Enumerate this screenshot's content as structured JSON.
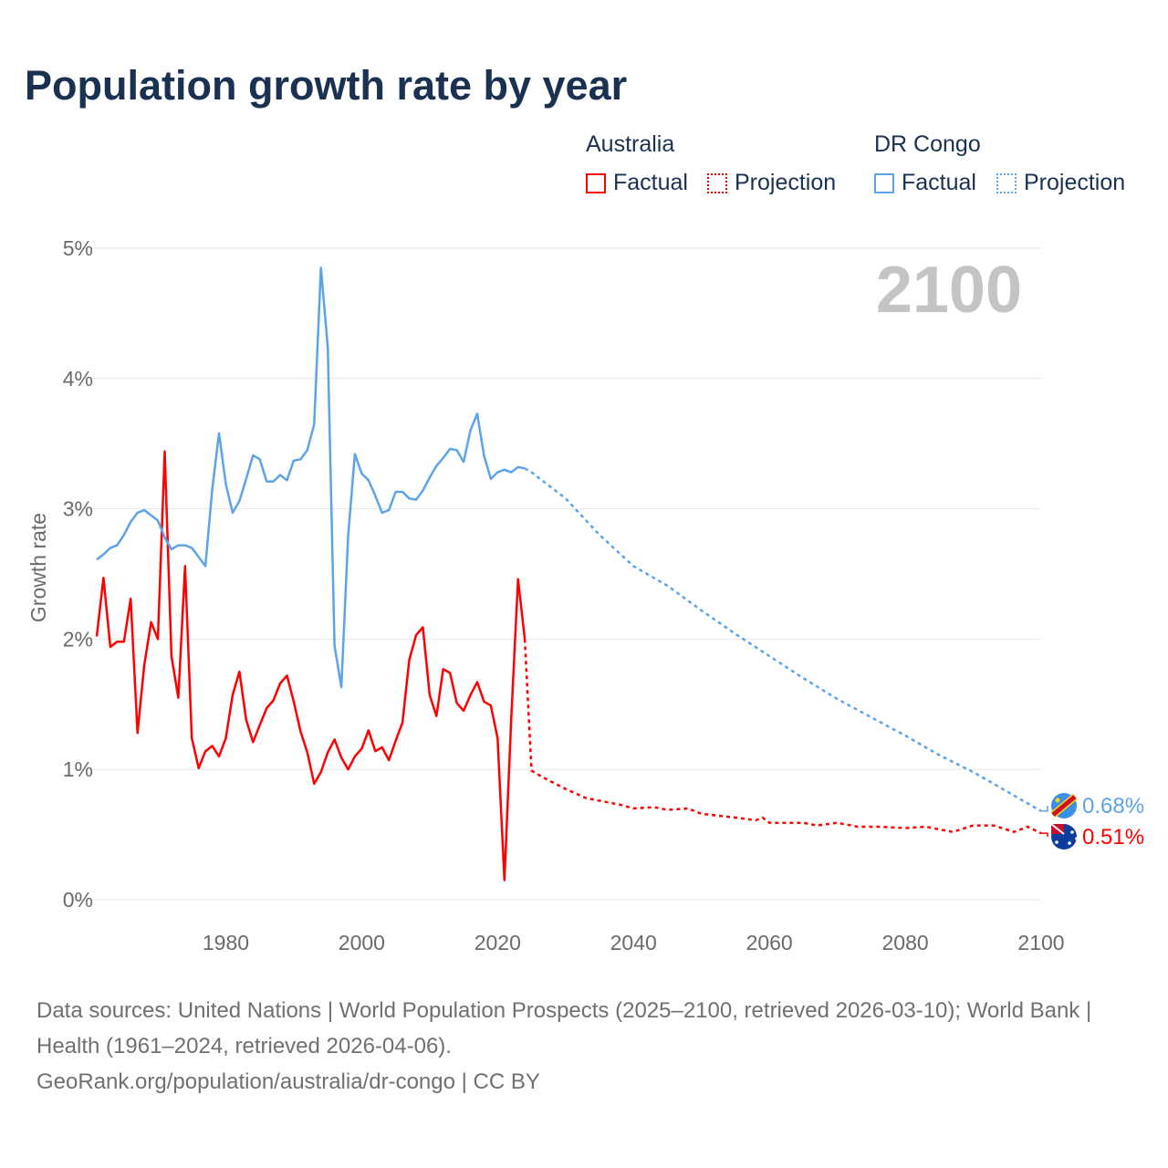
{
  "title": "Population growth rate by year",
  "legend": {
    "groups": [
      {
        "name": "Australia",
        "color": "#ff0000",
        "factual": "Factual",
        "projection": "Projection"
      },
      {
        "name": "DR Congo",
        "color": "#5ba4ea",
        "factual": "Factual",
        "projection": "Projection"
      }
    ]
  },
  "footer": {
    "line1": "Data sources: United Nations | World Population Prospects (2025–2100, retrieved 2026-03-10); World Bank | Health (1961–2024, retrieved 2026-04-06).",
    "line2": "GeoRank.org/population/australia/dr-congo | CC BY"
  },
  "chart_data": {
    "type": "line",
    "title": "Population growth rate by year",
    "xlabel": "",
    "ylabel": "Growth rate",
    "year_overlay": "2100",
    "xlim": [
      1961,
      2100
    ],
    "ylim": [
      0,
      5
    ],
    "xticks": [
      1980,
      2000,
      2020,
      2040,
      2060,
      2080,
      2100
    ],
    "yticks": [
      {
        "v": 0,
        "label": "0%"
      },
      {
        "v": 1,
        "label": "1%"
      },
      {
        "v": 2,
        "label": "2%"
      },
      {
        "v": 3,
        "label": "3%"
      },
      {
        "v": 4,
        "label": "4%"
      },
      {
        "v": 5,
        "label": "5%"
      }
    ],
    "grid": true,
    "legend_position": "top-right",
    "series": [
      {
        "name": "Australia",
        "color": "#ff0000",
        "end_label": "0.51%",
        "factual": {
          "x": [
            1961,
            1962,
            1963,
            1964,
            1965,
            1966,
            1967,
            1968,
            1969,
            1970,
            1971,
            1972,
            1973,
            1974,
            1975,
            1976,
            1977,
            1978,
            1979,
            1980,
            1981,
            1982,
            1983,
            1984,
            1985,
            1986,
            1987,
            1988,
            1989,
            1990,
            1991,
            1992,
            1993,
            1994,
            1995,
            1996,
            1997,
            1998,
            1999,
            2000,
            2001,
            2002,
            2003,
            2004,
            2005,
            2006,
            2007,
            2008,
            2009,
            2010,
            2011,
            2012,
            2013,
            2014,
            2015,
            2016,
            2017,
            2018,
            2019,
            2020,
            2021,
            2022,
            2023,
            2024
          ],
          "y": [
            2.02,
            2.47,
            1.94,
            1.98,
            1.98,
            2.31,
            1.28,
            1.8,
            2.13,
            2.0,
            3.44,
            1.87,
            1.55,
            2.56,
            1.24,
            1.01,
            1.14,
            1.18,
            1.1,
            1.24,
            1.57,
            1.75,
            1.38,
            1.21,
            1.34,
            1.47,
            1.53,
            1.66,
            1.72,
            1.52,
            1.29,
            1.13,
            0.89,
            0.98,
            1.13,
            1.23,
            1.09,
            1.0,
            1.1,
            1.16,
            1.3,
            1.14,
            1.17,
            1.07,
            1.22,
            1.36,
            1.84,
            2.03,
            2.09,
            1.57,
            1.41,
            1.77,
            1.74,
            1.51,
            1.45,
            1.57,
            1.67,
            1.52,
            1.49,
            1.24,
            0.15,
            1.38,
            2.46,
            2.0
          ]
        },
        "projection": {
          "x": [
            2024,
            2025,
            2027,
            2030,
            2033,
            2035,
            2038,
            2040,
            2043,
            2045,
            2048,
            2050,
            2055,
            2058,
            2059,
            2060,
            2065,
            2067,
            2070,
            2073,
            2076,
            2080,
            2083,
            2087,
            2090,
            2093,
            2096,
            2098,
            2100
          ],
          "y": [
            2.0,
            0.99,
            0.93,
            0.85,
            0.78,
            0.76,
            0.73,
            0.7,
            0.71,
            0.69,
            0.7,
            0.66,
            0.63,
            0.61,
            0.63,
            0.59,
            0.59,
            0.57,
            0.59,
            0.56,
            0.56,
            0.55,
            0.56,
            0.52,
            0.57,
            0.57,
            0.52,
            0.56,
            0.51
          ]
        }
      },
      {
        "name": "DR Congo",
        "color": "#5ba4ea",
        "end_label": "0.68%",
        "factual": {
          "x": [
            1961,
            1962,
            1963,
            1964,
            1965,
            1966,
            1967,
            1968,
            1969,
            1970,
            1971,
            1972,
            1973,
            1974,
            1975,
            1976,
            1977,
            1978,
            1979,
            1980,
            1981,
            1982,
            1983,
            1984,
            1985,
            1986,
            1987,
            1988,
            1989,
            1990,
            1991,
            1992,
            1993,
            1994,
            1995,
            1996,
            1997,
            1998,
            1999,
            2000,
            2001,
            2002,
            2003,
            2004,
            2005,
            2006,
            2007,
            2008,
            2009,
            2010,
            2011,
            2012,
            2013,
            2014,
            2015,
            2016,
            2017,
            2018,
            2019,
            2020,
            2021,
            2022,
            2023,
            2024
          ],
          "y": [
            2.61,
            2.65,
            2.7,
            2.72,
            2.8,
            2.9,
            2.97,
            2.99,
            2.95,
            2.91,
            2.78,
            2.69,
            2.72,
            2.72,
            2.7,
            2.63,
            2.56,
            3.15,
            3.58,
            3.19,
            2.97,
            3.06,
            3.23,
            3.41,
            3.38,
            3.21,
            3.21,
            3.26,
            3.22,
            3.37,
            3.38,
            3.45,
            3.65,
            4.85,
            4.24,
            1.95,
            1.63,
            2.79,
            3.42,
            3.27,
            3.22,
            3.1,
            2.97,
            2.99,
            3.13,
            3.13,
            3.08,
            3.07,
            3.14,
            3.24,
            3.33,
            3.39,
            3.46,
            3.45,
            3.36,
            3.6,
            3.73,
            3.41,
            3.23,
            3.28,
            3.3,
            3.28,
            3.32,
            3.31
          ]
        },
        "projection": {
          "x": [
            2024,
            2025,
            2030,
            2035,
            2040,
            2045,
            2050,
            2055,
            2060,
            2065,
            2070,
            2075,
            2080,
            2085,
            2090,
            2095,
            2100
          ],
          "y": [
            3.31,
            3.28,
            3.08,
            2.8,
            2.56,
            2.41,
            2.22,
            2.04,
            1.87,
            1.7,
            1.54,
            1.4,
            1.26,
            1.11,
            0.98,
            0.83,
            0.68
          ]
        }
      }
    ]
  }
}
